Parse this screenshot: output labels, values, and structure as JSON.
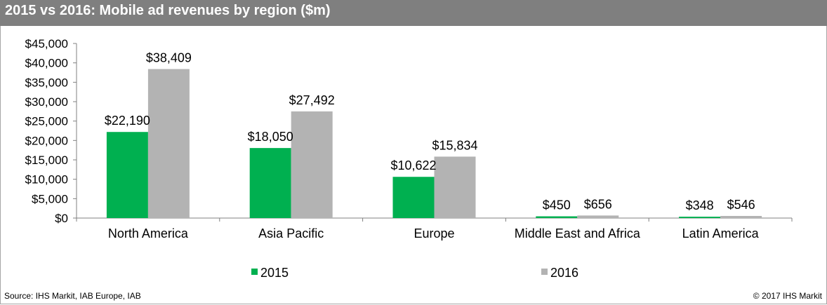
{
  "title": "2015 vs 2016: Mobile ad revenues by region ($m)",
  "source": "Source: IHS Markit, IAB Europe, IAB",
  "copyright": "© 2017 IHS Markit",
  "colors": {
    "2015": "#00b050",
    "2016": "#b3b3b3",
    "title_bg": "#7f7f7f"
  },
  "chart_data": {
    "type": "bar",
    "title": "2015 vs 2016: Mobile ad revenues by region ($m)",
    "xlabel": "",
    "ylabel": "",
    "ylim": [
      0,
      45000
    ],
    "yticks": [
      0,
      5000,
      10000,
      15000,
      20000,
      25000,
      30000,
      35000,
      40000,
      45000
    ],
    "ytick_labels": [
      "$0",
      "$5,000",
      "$10,000",
      "$15,000",
      "$20,000",
      "$25,000",
      "$30,000",
      "$35,000",
      "$40,000",
      "$45,000"
    ],
    "categories": [
      "North America",
      "Asia Pacific",
      "Europe",
      "Middle East and Africa",
      "Latin America"
    ],
    "series": [
      {
        "name": "2015",
        "values": [
          22190,
          18050,
          10622,
          450,
          348
        ],
        "labels": [
          "$22,190",
          "$18,050",
          "$10,622",
          "$450",
          "$348"
        ]
      },
      {
        "name": "2016",
        "values": [
          38409,
          27492,
          15834,
          656,
          546
        ],
        "labels": [
          "$38,409",
          "$27,492",
          "$15,834",
          "$656",
          "$546"
        ]
      }
    ],
    "legend": "bottom",
    "grid": false
  }
}
